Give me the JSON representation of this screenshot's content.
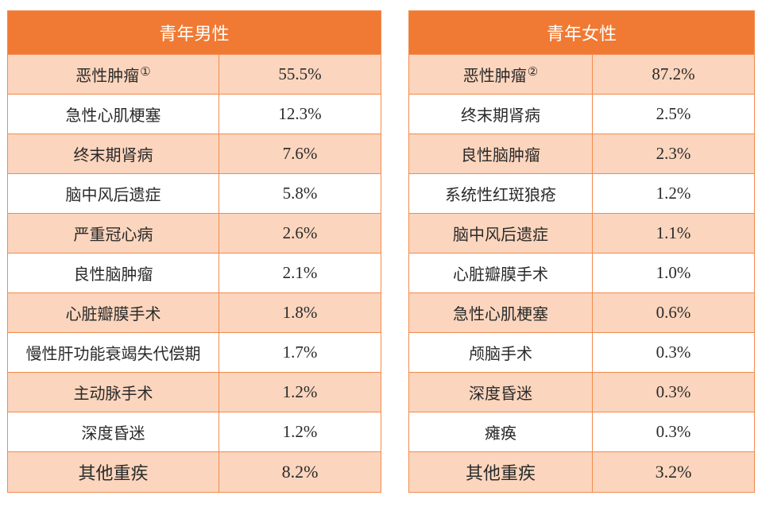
{
  "male": {
    "title": "青年男性",
    "rows": [
      {
        "name": "恶性肿瘤",
        "note": "①",
        "value": "55.5%"
      },
      {
        "name": "急性心肌梗塞",
        "value": "12.3%"
      },
      {
        "name": "终末期肾病",
        "value": "7.6%"
      },
      {
        "name": "脑中风后遗症",
        "value": "5.8%"
      },
      {
        "name": "严重冠心病",
        "value": "2.6%"
      },
      {
        "name": "良性脑肿瘤",
        "value": "2.1%"
      },
      {
        "name": "心脏瓣膜手术",
        "value": "1.8%"
      },
      {
        "name": "慢性肝功能衰竭失代偿期",
        "value": "1.7%"
      },
      {
        "name": "主动脉手术",
        "value": "1.2%"
      },
      {
        "name": "深度昏迷",
        "value": "1.2%"
      },
      {
        "name": "其他重疾",
        "value": "8.2%"
      }
    ]
  },
  "female": {
    "title": "青年女性",
    "rows": [
      {
        "name": "恶性肿瘤",
        "note": "②",
        "value": "87.2%"
      },
      {
        "name": "终末期肾病",
        "value": "2.5%"
      },
      {
        "name": "良性脑肿瘤",
        "value": "2.3%"
      },
      {
        "name": "系统性红斑狼疮",
        "value": "1.2%"
      },
      {
        "name": "脑中风后遗症",
        "value": "1.1%"
      },
      {
        "name": "心脏瓣膜手术",
        "value": "1.0%"
      },
      {
        "name": "急性心肌梗塞",
        "value": "0.6%"
      },
      {
        "name": "颅脑手术",
        "value": "0.3%"
      },
      {
        "name": "深度昏迷",
        "value": "0.3%"
      },
      {
        "name": "瘫痪",
        "value": "0.3%"
      },
      {
        "name": "其他重疾",
        "value": "3.2%"
      }
    ]
  },
  "colors": {
    "header": "#f07a33",
    "band": "#fbd5bd",
    "border": "#f28b4e"
  }
}
